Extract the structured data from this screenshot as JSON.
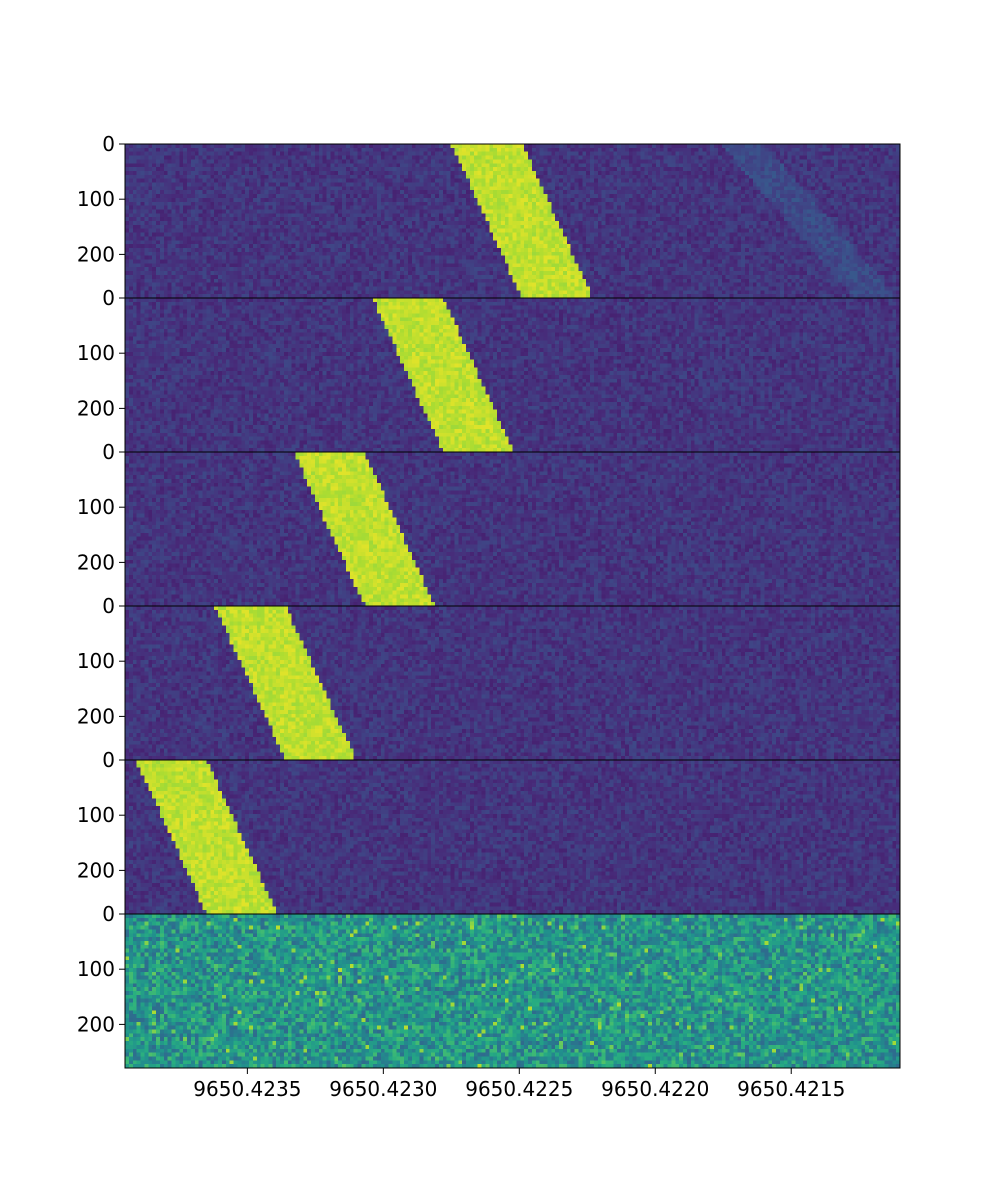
{
  "chart_data": {
    "type": "heatmap",
    "title": "",
    "xlabel": "",
    "ylabel": "",
    "colormap": "viridis",
    "background_color": "#3b2a78",
    "signal_color": "#cde11d",
    "noise_panel_color": "#23877f",
    "x_axis": {
      "reversed": true,
      "xlim": [
        9650.42395,
        9650.4211
      ],
      "ticks": [
        9650.4235,
        9650.423,
        9650.4225,
        9650.422,
        9650.4215
      ],
      "tick_labels": [
        "9650.4235",
        "9650.4230",
        "9650.4225",
        "9650.4220",
        "9650.4215"
      ]
    },
    "panels": [
      {
        "name": "panel-1",
        "ylim": [
          0,
          279
        ],
        "y_ticks": [
          0,
          100,
          200
        ],
        "y_tick_labels": [
          "0",
          "100",
          "200"
        ],
        "drift_track": {
          "x_left_start": 9650.42275,
          "x_left_end": 9650.42249,
          "width_freq": 0.00026,
          "intensity": 1.0
        },
        "faint_track": {
          "x_start": 9650.42168,
          "x_end": 9650.42119,
          "intensity": 0.16
        },
        "noise": "low"
      },
      {
        "name": "panel-2",
        "ylim": [
          0,
          279
        ],
        "y_ticks": [
          0,
          100,
          200
        ],
        "y_tick_labels": [
          "0",
          "100",
          "200"
        ],
        "drift_track": {
          "x_left_start": 9650.42304,
          "x_left_end": 9650.42278,
          "width_freq": 0.00026,
          "intensity": 1.0
        },
        "noise": "low"
      },
      {
        "name": "panel-3",
        "ylim": [
          0,
          279
        ],
        "y_ticks": [
          0,
          100,
          200
        ],
        "y_tick_labels": [
          "0",
          "100",
          "200"
        ],
        "drift_track": {
          "x_left_start": 9650.42333,
          "x_left_end": 9650.42307,
          "width_freq": 0.00026,
          "intensity": 1.0
        },
        "noise": "low"
      },
      {
        "name": "panel-4",
        "ylim": [
          0,
          279
        ],
        "y_ticks": [
          0,
          100,
          200
        ],
        "y_tick_labels": [
          "0",
          "100",
          "200"
        ],
        "drift_track": {
          "x_left_start": 9650.42362,
          "x_left_end": 9650.42336,
          "width_freq": 0.00026,
          "intensity": 1.0
        },
        "noise": "low"
      },
      {
        "name": "panel-5",
        "ylim": [
          0,
          279
        ],
        "y_ticks": [
          0,
          100,
          200
        ],
        "y_tick_labels": [
          "0",
          "100",
          "200"
        ],
        "drift_track": {
          "x_left_start": 9650.42391,
          "x_left_end": 9650.42365,
          "width_freq": 0.00026,
          "intensity": 1.0
        },
        "noise": "low"
      },
      {
        "name": "panel-6",
        "ylim": [
          0,
          279
        ],
        "y_ticks": [
          0,
          100,
          200
        ],
        "y_tick_labels": [
          "0",
          "100",
          "200"
        ],
        "noise": "high"
      }
    ],
    "grid": false,
    "legend": "none"
  }
}
